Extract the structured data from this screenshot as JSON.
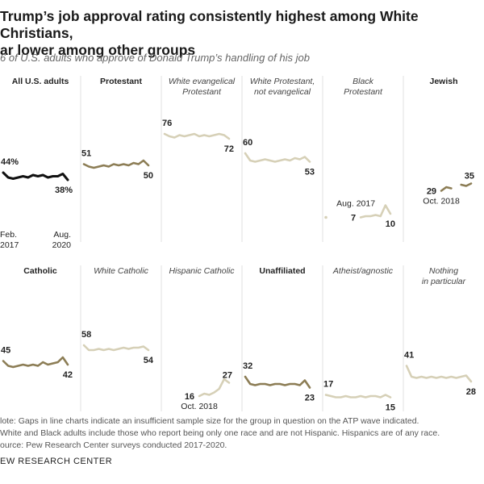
{
  "title_line1": "Trump’s job approval rating consistently highest among White Christians,",
  "title_line2": "ar lower among other groups",
  "subtitle": "6 of U.S. adults who approve of Donald Trump’s handling of his job",
  "notes": [
    "lote: Gaps in line charts indicate an insufficient sample size for the group in question on the ATP wave indicated.",
    "White and Black adults include those who report being only one race and are not Hispanic. Hispanics are of any race.",
    "ource: Pew Research Center surveys conducted 2017-2020."
  ],
  "org": "EW RESEARCH CENTER",
  "colors": {
    "total": "#111111",
    "dark_olive": "#8c7d55",
    "light_olive": "#d6d0b7"
  },
  "chart_data": {
    "type": "line",
    "ylim": [
      0,
      100
    ],
    "x_wave_count": 14,
    "panels": [
      {
        "title": "All U.S. adults",
        "style": "bold",
        "color": "total",
        "values": [
          44,
          40,
          39,
          40,
          41,
          40,
          42,
          41,
          42,
          40,
          41,
          41,
          43,
          38
        ],
        "labels": [
          {
            "i": 0,
            "text": "44%",
            "pos": "above-left"
          },
          {
            "i": 13,
            "text": "38%",
            "pos": "below-right"
          }
        ],
        "axis_labels": {
          "start": [
            "Feb.",
            "2017"
          ],
          "end": [
            "Aug.",
            "2020"
          ]
        }
      },
      {
        "title": "Protestant",
        "style": "bold",
        "color": "dark_olive",
        "values": [
          51,
          49,
          48,
          49,
          50,
          49,
          51,
          50,
          51,
          50,
          52,
          51,
          54,
          50
        ],
        "labels": [
          {
            "i": 0,
            "text": "51",
            "pos": "above-left"
          },
          {
            "i": 13,
            "text": "50",
            "pos": "below-right"
          }
        ]
      },
      {
        "title": "White evangelical",
        "title2": "Protestant",
        "style": "italic",
        "color": "light_olive",
        "values": [
          76,
          74,
          73,
          75,
          74,
          75,
          76,
          74,
          75,
          74,
          75,
          76,
          75,
          72
        ],
        "labels": [
          {
            "i": 0,
            "text": "76",
            "pos": "above-left"
          },
          {
            "i": 13,
            "text": "72",
            "pos": "below-right"
          }
        ]
      },
      {
        "title": "White Protestant,",
        "title2": "not evangelical",
        "style": "italic",
        "color": "light_olive",
        "values": [
          60,
          54,
          53,
          54,
          55,
          54,
          53,
          54,
          55,
          54,
          56,
          55,
          57,
          53
        ],
        "labels": [
          {
            "i": 0,
            "text": "60",
            "pos": "above-left"
          },
          {
            "i": 13,
            "text": "53",
            "pos": "below-right"
          }
        ]
      },
      {
        "title": "Black",
        "title2": "Protestant",
        "style": "italic",
        "color": "light_olive",
        "values": [
          7,
          null,
          null,
          null,
          null,
          null,
          null,
          7,
          8,
          8,
          9,
          8,
          17,
          10
        ],
        "labels": [
          {
            "i": 7,
            "text": "Aug. 2017",
            "pos": "above-far-left"
          },
          {
            "i": 7,
            "text": "7",
            "pos": "left"
          },
          {
            "i": 13,
            "text": "10",
            "pos": "below-right"
          }
        ]
      },
      {
        "title": "Jewish",
        "style": "bold",
        "color": "dark_olive",
        "values": [
          null,
          null,
          null,
          null,
          null,
          null,
          null,
          29,
          32,
          31,
          null,
          34,
          33,
          35
        ],
        "labels": [
          {
            "i": 7,
            "text": "29",
            "pos": "left"
          },
          {
            "i": 7,
            "text": "Oct. 2018",
            "pos": "below"
          },
          {
            "i": 13,
            "text": "35",
            "pos": "above-right"
          }
        ]
      },
      {
        "title": "Catholic",
        "style": "bold",
        "color": "dark_olive",
        "values": [
          45,
          41,
          40,
          41,
          42,
          41,
          42,
          41,
          44,
          42,
          43,
          44,
          48,
          42
        ],
        "labels": [
          {
            "i": 0,
            "text": "45",
            "pos": "above-left"
          },
          {
            "i": 13,
            "text": "42",
            "pos": "below-right"
          }
        ]
      },
      {
        "title": "White Catholic",
        "style": "italic",
        "color": "light_olive",
        "values": [
          58,
          54,
          54,
          55,
          54,
          55,
          54,
          55,
          56,
          55,
          56,
          56,
          57,
          54
        ],
        "labels": [
          {
            "i": 0,
            "text": "58",
            "pos": "above-left"
          },
          {
            "i": 13,
            "text": "54",
            "pos": "below-right"
          }
        ]
      },
      {
        "title": "Hispanic Catholic",
        "style": "italic",
        "color": "light_olive",
        "values": [
          null,
          null,
          null,
          null,
          null,
          null,
          null,
          16,
          18,
          17,
          19,
          22,
          30,
          27
        ],
        "labels": [
          {
            "i": 7,
            "text": "16",
            "pos": "left"
          },
          {
            "i": 7,
            "text": "Oct. 2018",
            "pos": "below"
          },
          {
            "i": 13,
            "text": "27",
            "pos": "above-right"
          }
        ]
      },
      {
        "title": "Unaffiliated",
        "style": "bold",
        "color": "dark_olive",
        "values": [
          32,
          26,
          25,
          26,
          26,
          25,
          26,
          26,
          25,
          26,
          26,
          25,
          29,
          23
        ],
        "labels": [
          {
            "i": 0,
            "text": "32",
            "pos": "above-left"
          },
          {
            "i": 13,
            "text": "23",
            "pos": "below-right"
          }
        ]
      },
      {
        "title": "Atheist/agnostic",
        "style": "italic",
        "color": "light_olive",
        "values": [
          17,
          16,
          15,
          15,
          16,
          15,
          15,
          16,
          15,
          16,
          16,
          15,
          17,
          15
        ],
        "labels": [
          {
            "i": 0,
            "text": "17",
            "pos": "above-left"
          },
          {
            "i": 13,
            "text": "15",
            "pos": "below-right"
          }
        ]
      },
      {
        "title": "Nothing",
        "title2": "in particular",
        "style": "italic",
        "color": "light_olive",
        "values": [
          41,
          32,
          31,
          32,
          31,
          32,
          31,
          32,
          31,
          32,
          31,
          32,
          33,
          28
        ],
        "labels": [
          {
            "i": 0,
            "text": "41",
            "pos": "above-left"
          },
          {
            "i": 13,
            "text": "28",
            "pos": "below-right"
          }
        ]
      }
    ]
  }
}
